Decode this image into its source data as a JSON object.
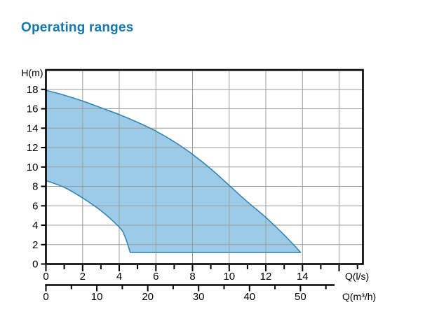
{
  "chart_data": {
    "type": "area",
    "title": "Operating ranges",
    "y_axis": {
      "label": "H(m)",
      "ticks": [
        0,
        2,
        4,
        6,
        8,
        10,
        12,
        14,
        16,
        18
      ],
      "lim": [
        0,
        20
      ]
    },
    "x_axis_ls": {
      "label": "Q(l/s)",
      "labeled_ticks": [
        0,
        2,
        4,
        6,
        8,
        10,
        12,
        14
      ],
      "minor_tick_step": 1,
      "minor_tick_max": 17,
      "lim": [
        0,
        17.3
      ]
    },
    "x_axis_m3h": {
      "label": "Q(m³/h)",
      "labeled_ticks": [
        0,
        10,
        20,
        30,
        40,
        50
      ],
      "minor_tick_step": 5,
      "minor_tick_max": 55,
      "m3h_per_ls": 3.6
    },
    "grid": {
      "x_values": [
        2,
        4,
        6,
        8,
        10,
        12,
        14,
        16
      ],
      "y_values": [
        2,
        4,
        6,
        8,
        10,
        12,
        14,
        16,
        18
      ]
    },
    "series": [
      {
        "name": "upper-limit",
        "points": [
          [
            0,
            17.9
          ],
          [
            1,
            17.4
          ],
          [
            2,
            16.8
          ],
          [
            3,
            16.1
          ],
          [
            4,
            15.4
          ],
          [
            5,
            14.6
          ],
          [
            6,
            13.7
          ],
          [
            7,
            12.6
          ],
          [
            8,
            11.3
          ],
          [
            9,
            9.8
          ],
          [
            10,
            8.1
          ],
          [
            11,
            6.4
          ],
          [
            12,
            4.8
          ],
          [
            13,
            3.0
          ],
          [
            13.9,
            1.2
          ]
        ]
      },
      {
        "name": "lower-limit",
        "points": [
          [
            0,
            8.6
          ],
          [
            1,
            7.9
          ],
          [
            2,
            6.8
          ],
          [
            3,
            5.5
          ],
          [
            4,
            3.8
          ],
          [
            4.3,
            2.9
          ],
          [
            4.6,
            1.2
          ]
        ]
      },
      {
        "name": "min-head-floor",
        "points": [
          [
            4.6,
            1.2
          ],
          [
            13.9,
            1.2
          ]
        ]
      }
    ],
    "colors": {
      "fill": "#9ccbe7",
      "stroke": "#3585b5",
      "grid": "#9c9c9c",
      "axis": "#000000",
      "title": "#1478ad"
    }
  }
}
